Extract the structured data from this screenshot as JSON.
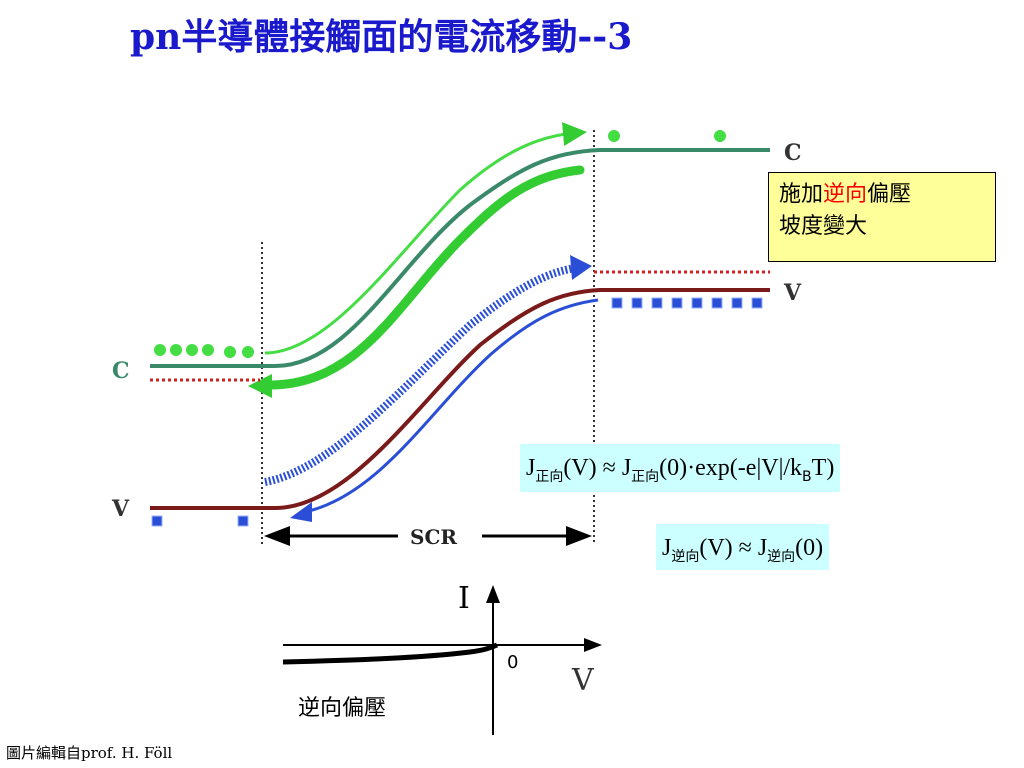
{
  "title": "pn半導體接觸面的電流移動--3",
  "band_labels": {
    "c_left": "C",
    "v_left": "V",
    "c_right": "C",
    "v_right": "V",
    "scr": "SCR"
  },
  "note": {
    "line1_prefix": "施加",
    "line1_accent": "逆向",
    "line1_suffix": "偏壓",
    "line2": "坡度變大"
  },
  "formula_forward": {
    "j": "J",
    "sub": "正向",
    "mid": "(V) ≈ J",
    "sub2": "正向",
    "rest": "(0)·exp(-e|V|/k",
    "kb_sub": "B",
    "end": "T)"
  },
  "formula_reverse": {
    "j": "J",
    "sub": "逆向",
    "mid": "(V) ≈ J",
    "sub2": "逆向",
    "end": "(0)"
  },
  "iv_plot": {
    "i_label": "I",
    "v_label": "V",
    "zero_label": "0",
    "caption": "逆向偏壓"
  },
  "credit": "圖片編輯自prof. H. Föll",
  "colors": {
    "title": "#1a1acc",
    "green": "#33cc33",
    "conduction": "#3a8a6a",
    "valence": "#7a1a1a",
    "hole": "#2a4fd6",
    "dotted_red": "#cc2222"
  }
}
